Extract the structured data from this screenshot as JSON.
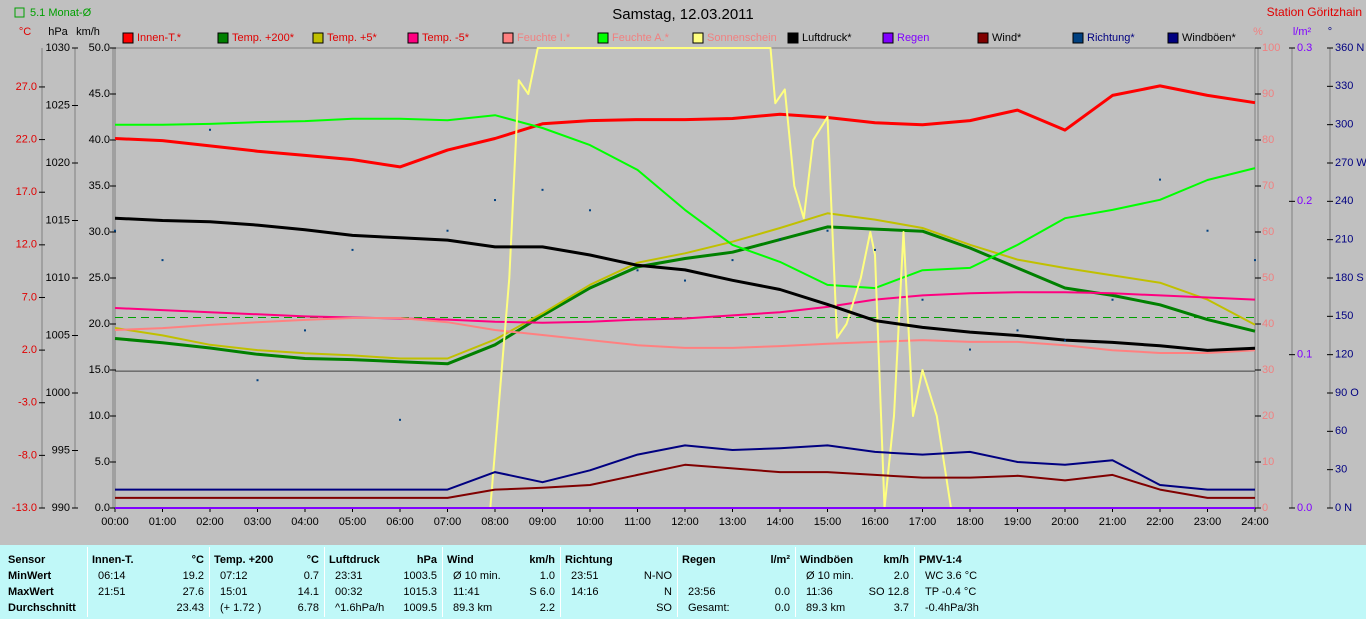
{
  "chart_data": {
    "type": "line",
    "title": "Samstag, 12.03.2011",
    "station": "Station Göritzhain",
    "monthly_avg": 5.1,
    "monthly_avg_label": "5.1 Monat-Ø",
    "monthly_avg_color": "#00a000",
    "x": [
      0,
      1,
      2,
      3,
      4,
      5,
      6,
      7,
      8,
      9,
      10,
      11,
      12,
      13,
      14,
      15,
      16,
      17,
      18,
      19,
      20,
      21,
      22,
      23,
      24
    ],
    "xlim": [
      0,
      24
    ],
    "xticks": [
      {
        "value": 0,
        "label": "00:00"
      },
      {
        "value": 1,
        "label": "01:00"
      },
      {
        "value": 2,
        "label": "02:00"
      },
      {
        "value": 3,
        "label": "03:00"
      },
      {
        "value": 4,
        "label": "04:00"
      },
      {
        "value": 5,
        "label": "05:00"
      },
      {
        "value": 6,
        "label": "06:00"
      },
      {
        "value": 7,
        "label": "07:00"
      },
      {
        "value": 8,
        "label": "08:00"
      },
      {
        "value": 9,
        "label": "09:00"
      },
      {
        "value": 10,
        "label": "10:00"
      },
      {
        "value": 11,
        "label": "11:00"
      },
      {
        "value": 12,
        "label": "12:00"
      },
      {
        "value": 13,
        "label": "13:00"
      },
      {
        "value": 14,
        "label": "14:00"
      },
      {
        "value": 15,
        "label": "15:00"
      },
      {
        "value": 16,
        "label": "16:00"
      },
      {
        "value": 17,
        "label": "17:00"
      },
      {
        "value": 18,
        "label": "18:00"
      },
      {
        "value": 19,
        "label": "19:00"
      },
      {
        "value": 20,
        "label": "20:00"
      },
      {
        "value": 21,
        "label": "21:00"
      },
      {
        "value": 22,
        "label": "22:00"
      },
      {
        "value": 23,
        "label": "23:00"
      },
      {
        "value": 24,
        "label": "24:00"
      }
    ],
    "axes": [
      {
        "label": "°C",
        "color": "#e00000",
        "lim": [
          -13,
          30.7
        ],
        "ticks": [
          {
            "value": -13,
            "label": "-13.0"
          },
          {
            "value": -8,
            "label": "-8.0"
          },
          {
            "value": -3,
            "label": "-3.0"
          },
          {
            "value": 2,
            "label": "2.0"
          },
          {
            "value": 7,
            "label": "7.0"
          },
          {
            "value": 12,
            "label": "12.0"
          },
          {
            "value": 17,
            "label": "17.0"
          },
          {
            "value": 22,
            "label": "22.0"
          },
          {
            "value": 27,
            "label": "27.0"
          }
        ]
      },
      {
        "label": "hPa",
        "color": "#000000",
        "lim": [
          990,
          1030
        ],
        "ticks": [
          990,
          995,
          1000,
          1005,
          1010,
          1015,
          1020,
          1025,
          1030
        ]
      },
      {
        "label": "km/h",
        "color": "#000000",
        "lim": [
          0,
          50
        ],
        "ticks": [
          {
            "value": 0,
            "label": "0.0"
          },
          {
            "value": 5,
            "label": "5.0"
          },
          {
            "value": 10,
            "label": "10.0"
          },
          {
            "value": 15,
            "label": "15.0"
          },
          {
            "value": 20,
            "label": "20.0"
          },
          {
            "value": 25,
            "label": "25.0"
          },
          {
            "value": 30,
            "label": "30.0"
          },
          {
            "value": 35,
            "label": "35.0"
          },
          {
            "value": 40,
            "label": "40.0"
          },
          {
            "value": 45,
            "label": "45.0"
          },
          {
            "value": 50,
            "label": "50.0"
          }
        ]
      },
      {
        "label": "%",
        "color": "#f08080",
        "lim": [
          0,
          100
        ],
        "ticks": [
          0,
          10,
          20,
          30,
          40,
          50,
          60,
          70,
          80,
          90,
          100
        ]
      },
      {
        "label": "l/m²",
        "color": "#8000ff",
        "lim": [
          0,
          0.3
        ],
        "ticks": [
          {
            "value": 0,
            "label": "0.0"
          },
          {
            "value": 0.1,
            "label": "0.1"
          },
          {
            "value": 0.2,
            "label": "0.2"
          },
          {
            "value": 0.3,
            "label": "0.3"
          }
        ]
      },
      {
        "label": "°",
        "color": "#000080",
        "lim": [
          0,
          360
        ],
        "ticks": [
          {
            "value": 0,
            "label": "0 N"
          },
          30,
          60,
          {
            "value": 90,
            "label": "90 O"
          },
          120,
          150,
          {
            "value": 180,
            "label": "180 S"
          },
          210,
          240,
          {
            "value": 270,
            "label": "270 W"
          },
          300,
          330,
          {
            "value": 360,
            "label": "360 N"
          }
        ]
      }
    ],
    "series": [
      {
        "name": "Innen-T.*",
        "color": "#ff0000",
        "axis": 0,
        "width": 3,
        "values": [
          22.1,
          21.9,
          21.4,
          20.9,
          20.5,
          20.1,
          19.4,
          21.0,
          22.1,
          23.5,
          23.8,
          23.9,
          23.9,
          24.0,
          24.4,
          24.1,
          23.6,
          23.4,
          23.8,
          24.8,
          22.9,
          26.2,
          27.1,
          26.2,
          25.5
        ]
      },
      {
        "name": "Temp. +200*",
        "color": "#008000",
        "axis": 0,
        "width": 3,
        "values": [
          3.1,
          2.7,
          2.2,
          1.6,
          1.2,
          1.1,
          0.9,
          0.7,
          2.5,
          5.3,
          7.9,
          9.9,
          10.7,
          11.3,
          12.5,
          13.7,
          13.5,
          13.3,
          11.7,
          9.8,
          7.9,
          7.2,
          6.3,
          4.9,
          3.8
        ]
      },
      {
        "name": "Temp. +5*",
        "color": "#c0c000",
        "axis": 0,
        "width": 2,
        "values": [
          4.1,
          3.4,
          2.5,
          2.0,
          1.7,
          1.5,
          1.2,
          1.2,
          3.0,
          5.5,
          8.2,
          10.3,
          11.2,
          12.3,
          13.6,
          15.0,
          14.4,
          13.6,
          12.0,
          10.6,
          9.8,
          9.1,
          8.4,
          6.8,
          4.4
        ]
      },
      {
        "name": "Temp. -5*",
        "color": "#ff0080",
        "axis": 0,
        "width": 2,
        "values": [
          6.0,
          5.8,
          5.6,
          5.4,
          5.2,
          5.1,
          5.0,
          4.9,
          4.7,
          4.6,
          4.7,
          4.9,
          5.0,
          5.3,
          5.6,
          6.1,
          6.8,
          7.2,
          7.4,
          7.5,
          7.5,
          7.4,
          7.2,
          7.0,
          6.8
        ]
      },
      {
        "name": "Feuchte I.*",
        "color": "#ff8080",
        "axis": 3,
        "width": 2,
        "values": [
          38.7,
          39.1,
          39.8,
          40.4,
          40.9,
          41.3,
          41.3,
          40.4,
          38.7,
          37.6,
          36.5,
          35.4,
          34.8,
          34.8,
          35.2,
          35.7,
          36.1,
          36.5,
          36.1,
          36.1,
          35.4,
          34.3,
          33.7,
          33.7,
          34.3
        ]
      },
      {
        "name": "Feuchte A.*",
        "color": "#00ff00",
        "axis": 3,
        "width": 2,
        "values": [
          83.3,
          83.3,
          83.5,
          83.9,
          84.1,
          84.6,
          84.6,
          84.3,
          85.4,
          82.6,
          78.9,
          73.5,
          64.8,
          57.2,
          53.5,
          48.5,
          47.8,
          51.7,
          52.2,
          57.2,
          63.0,
          64.8,
          67.0,
          71.3,
          73.9
        ]
      },
      {
        "name": "Sonnenschein",
        "color": "#ffff80",
        "axis": 3,
        "width": 2,
        "x": [
          0,
          7.9,
          8.3,
          8.5,
          8.7,
          8.9,
          9.0,
          13.8,
          13.9,
          14.1,
          14.3,
          14.5,
          14.7,
          15.0,
          15.2,
          15.4,
          15.7,
          15.9,
          16.0,
          16.2,
          16.4,
          16.6,
          16.8,
          17.0,
          17.3,
          17.6,
          17.8,
          24
        ],
        "values": [
          0,
          0,
          50,
          93,
          90,
          100,
          100,
          100,
          88,
          91,
          70,
          63,
          80,
          85,
          37,
          40,
          50,
          60,
          55,
          0,
          20,
          60,
          20,
          30,
          20,
          0,
          0,
          0
        ]
      },
      {
        "name": "Luftdruck*",
        "color": "#000000",
        "axis": 1,
        "width": 3,
        "values": [
          1015.2,
          1015.0,
          1014.9,
          1014.6,
          1014.2,
          1013.7,
          1013.5,
          1013.3,
          1012.7,
          1012.7,
          1012.0,
          1011.1,
          1010.7,
          1009.8,
          1009.0,
          1007.7,
          1006.3,
          1005.7,
          1005.3,
          1005.0,
          1004.6,
          1004.4,
          1004.1,
          1003.7,
          1003.9
        ]
      },
      {
        "name": "Regen",
        "color": "#8000ff",
        "axis": 4,
        "width": 2,
        "values": [
          0,
          0,
          0,
          0,
          0,
          0,
          0,
          0,
          0,
          0,
          0,
          0,
          0,
          0,
          0,
          0,
          0,
          0,
          0,
          0,
          0,
          0,
          0,
          0,
          0
        ]
      },
      {
        "name": "Wind*",
        "color": "#800000",
        "axis": 2,
        "width": 2,
        "values": [
          1.1,
          1.1,
          1.1,
          1.1,
          1.1,
          1.1,
          1.1,
          1.1,
          2.0,
          2.2,
          2.5,
          3.6,
          4.7,
          4.3,
          3.9,
          3.9,
          3.6,
          3.3,
          3.3,
          3.5,
          3.0,
          3.6,
          2.0,
          1.1,
          1.1
        ]
      },
      {
        "name": "Richtung*",
        "color": "#004080",
        "axis": 5,
        "kind": "scatter",
        "values": [
          217,
          194,
          296,
          100,
          139,
          202,
          69,
          217,
          241,
          249,
          233,
          186,
          178,
          194,
          210,
          217,
          202,
          163,
          124,
          139,
          131,
          163,
          257,
          217,
          194
        ]
      },
      {
        "name": "Windböen*",
        "color": "#000080",
        "axis": 2,
        "width": 2,
        "values": [
          2.0,
          2.0,
          2.0,
          2.0,
          2.0,
          2.0,
          2.0,
          2.0,
          3.9,
          2.8,
          4.1,
          5.8,
          6.8,
          6.3,
          6.5,
          6.8,
          6.1,
          5.8,
          6.1,
          5.0,
          4.7,
          5.2,
          2.5,
          2.0,
          2.0
        ]
      }
    ]
  },
  "table": {
    "row_labels": [
      "Sensor",
      "MinWert",
      "MaxWert",
      "Durchschnitt"
    ],
    "groups": [
      {
        "name": "Innen-T.",
        "unit": "°C",
        "rows": [
          [
            "06:14",
            "19.2"
          ],
          [
            "21:51",
            "27.6"
          ],
          [
            null,
            "23.43"
          ]
        ]
      },
      {
        "name": "Temp. +200",
        "unit": "°C",
        "rows": [
          [
            "07:12",
            "0.7"
          ],
          [
            "15:01",
            "14.1"
          ],
          [
            "(+ 1.72 )",
            "6.78"
          ]
        ]
      },
      {
        "name": "Luftdruck",
        "unit": "hPa",
        "rows": [
          [
            "23:31",
            "1003.5"
          ],
          [
            "00:32",
            "1015.3"
          ],
          [
            "^1.6hPa/h",
            "1009.5"
          ]
        ]
      },
      {
        "name": "Wind",
        "unit": "km/h",
        "rows": [
          [
            "Ø 10 min.",
            "1.0"
          ],
          [
            "11:41",
            "S 6.0"
          ],
          [
            "89.3 km",
            "2.2"
          ]
        ]
      },
      {
        "name": "Richtung",
        "unit": null,
        "rows": [
          [
            "23:51",
            "N-NO"
          ],
          [
            "14:16",
            "N"
          ],
          [
            null,
            "SO"
          ]
        ]
      },
      {
        "name": "Regen",
        "unit": "l/m²",
        "rows": [
          [
            null,
            null
          ],
          [
            "23:56",
            "0.0"
          ],
          [
            "Gesamt:",
            "0.0"
          ]
        ]
      },
      {
        "name": "Windböen",
        "unit": "km/h",
        "rows": [
          [
            "Ø 10 min.",
            "2.0"
          ],
          [
            "11:36",
            "SO 12.8"
          ],
          [
            "89.3 km",
            "3.7"
          ]
        ]
      },
      {
        "name": "PMV-1:4",
        "unit": null,
        "rows": [
          [
            "WC 3.6 °C",
            null
          ],
          [
            "TP -0.4 °C",
            null
          ],
          [
            "-0.4hPa/3h",
            null
          ]
        ]
      }
    ]
  }
}
